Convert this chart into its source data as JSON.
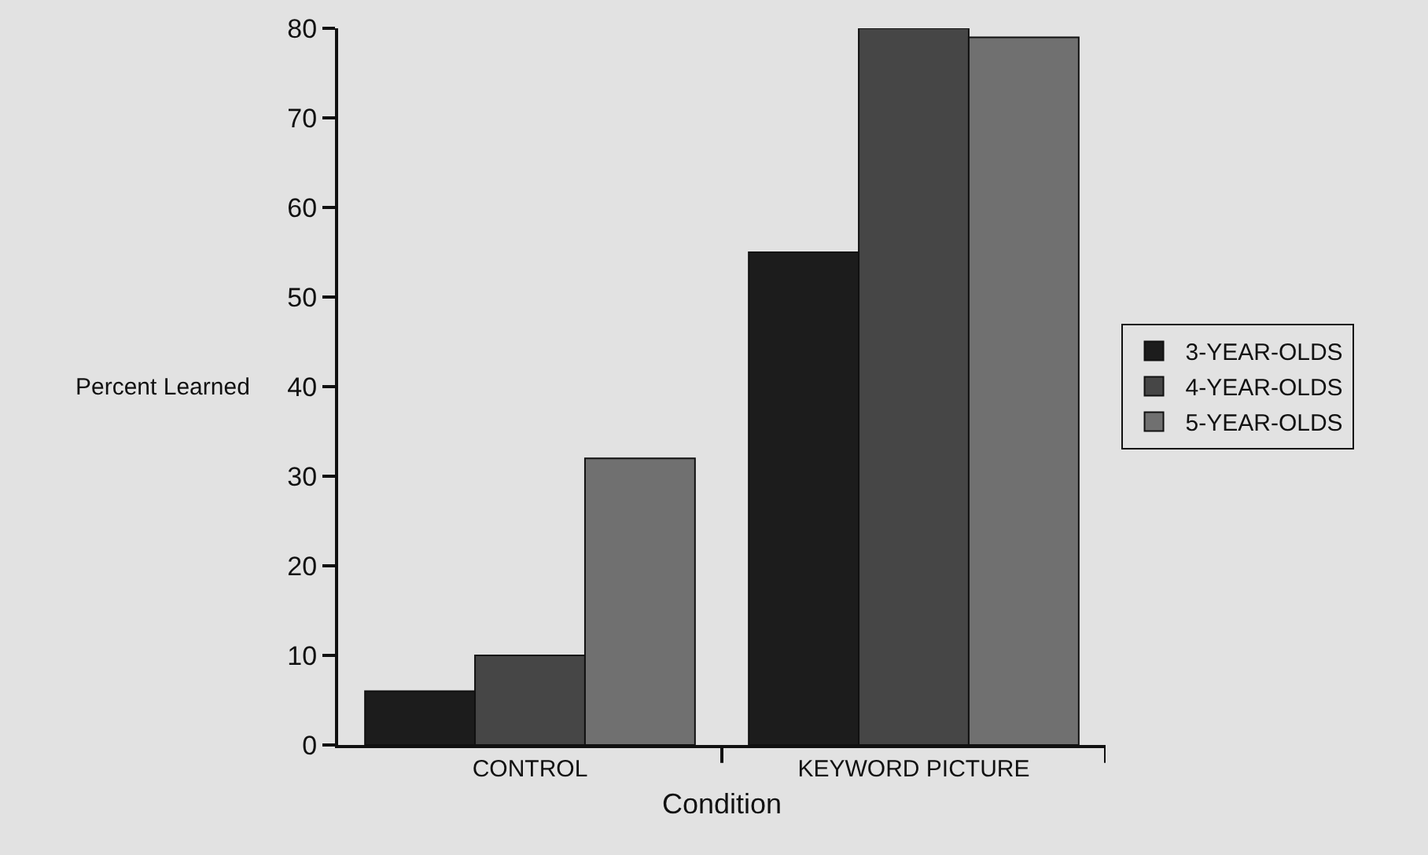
{
  "chart_data": {
    "type": "bar",
    "xlabel": "Condition",
    "ylabel": "Percent Learned",
    "categories": [
      "CONTROL",
      "KEYWORD PICTURE"
    ],
    "series": [
      {
        "name": "3-YEAR-OLDS",
        "color": "#1c1c1c",
        "values": [
          6,
          55
        ]
      },
      {
        "name": "4-YEAR-OLDS",
        "color": "#464646",
        "values": [
          10,
          80
        ]
      },
      {
        "name": "5-YEAR-OLDS",
        "color": "#707070",
        "values": [
          32,
          79
        ]
      }
    ],
    "ylim": [
      0,
      80
    ],
    "yticks": [
      0,
      10,
      20,
      30,
      40,
      50,
      60,
      70,
      80
    ],
    "grid": false,
    "legend": "right"
  }
}
